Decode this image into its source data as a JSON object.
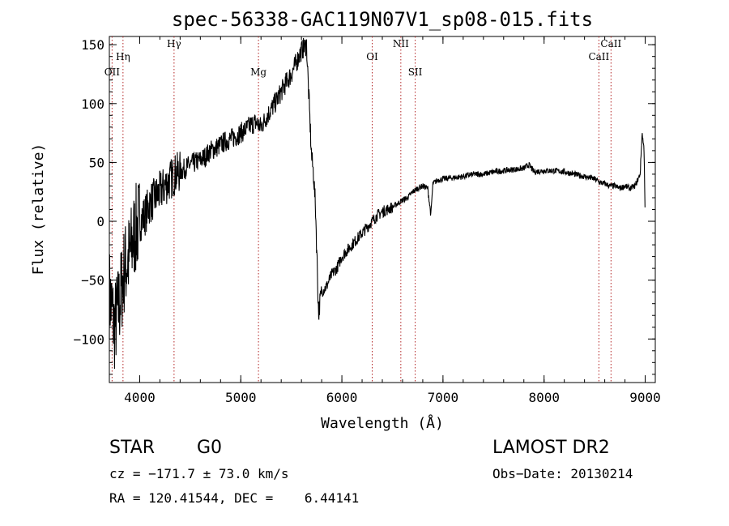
{
  "chart_data": {
    "type": "line",
    "title": "spec-56338-GAC119N07V1_sp08-015.fits",
    "xlabel": "Wavelength (Å)",
    "ylabel": "Flux (relative)",
    "xlim": [
      3700,
      9100
    ],
    "ylim": [
      -137,
      157
    ],
    "xticks": [
      4000,
      5000,
      6000,
      7000,
      8000,
      9000
    ],
    "yticks": [
      -100,
      -50,
      0,
      50,
      100,
      150
    ],
    "grid": false,
    "series_color": "#000000",
    "line_color": "#b22222",
    "spectral_lines": [
      {
        "label": "OII",
        "x": 3727,
        "label_y": 124
      },
      {
        "label": "Hη",
        "x": 3835,
        "label_y": 137
      },
      {
        "label": "Hγ",
        "x": 4340,
        "label_y": 148
      },
      {
        "label": "Mg",
        "x": 5175,
        "label_y": 124
      },
      {
        "label": "OI",
        "x": 6300,
        "label_y": 137
      },
      {
        "label": "NII",
        "x": 6583,
        "label_y": 148
      },
      {
        "label": "SII",
        "x": 6725,
        "label_y": 124
      },
      {
        "label": "CaII",
        "x": 8542,
        "label_y": 137
      },
      {
        "label": "CaII",
        "x": 8662,
        "label_y": 148
      }
    ],
    "x": [
      3700,
      3750,
      3800,
      3850,
      3900,
      3950,
      4000,
      4050,
      4100,
      4150,
      4200,
      4250,
      4300,
      4350,
      4400,
      4450,
      4500,
      4550,
      4600,
      4650,
      4700,
      4750,
      4800,
      4850,
      4900,
      4950,
      5000,
      5050,
      5100,
      5150,
      5200,
      5250,
      5300,
      5350,
      5400,
      5450,
      5500,
      5550,
      5600,
      5650,
      5700,
      5720,
      5740,
      5760,
      5770,
      5780,
      5800,
      5850,
      5900,
      5950,
      6000,
      6050,
      6100,
      6150,
      6200,
      6250,
      6300,
      6350,
      6400,
      6450,
      6500,
      6550,
      6600,
      6650,
      6700,
      6750,
      6800,
      6850,
      6880,
      6900,
      6950,
      7000,
      7100,
      7200,
      7300,
      7400,
      7500,
      7600,
      7700,
      7800,
      7850,
      7900,
      8000,
      8100,
      8200,
      8300,
      8400,
      8500,
      8550,
      8600,
      8650,
      8700,
      8750,
      8800,
      8850,
      8900,
      8950,
      8970,
      8990,
      9000
    ],
    "y": [
      -60,
      -90,
      -70,
      -40,
      -30,
      -10,
      0,
      5,
      15,
      20,
      25,
      30,
      35,
      40,
      42,
      45,
      48,
      50,
      52,
      55,
      60,
      62,
      65,
      68,
      70,
      72,
      75,
      78,
      82,
      84,
      80,
      88,
      95,
      102,
      110,
      118,
      125,
      135,
      145,
      150,
      55,
      40,
      10,
      -50,
      -80,
      -70,
      -60,
      -55,
      -45,
      -40,
      -30,
      -25,
      -20,
      -15,
      -10,
      -5,
      0,
      5,
      8,
      10,
      12,
      15,
      18,
      20,
      25,
      28,
      30,
      28,
      5,
      32,
      35,
      36,
      37,
      38,
      40,
      40,
      42,
      43,
      44,
      45,
      48,
      42,
      43,
      43,
      42,
      40,
      38,
      36,
      33,
      32,
      30,
      30,
      28,
      30,
      28,
      30,
      40,
      75,
      60,
      0
    ]
  },
  "footer": {
    "object_class": "STAR",
    "subclass": "G0",
    "survey": "LAMOST DR2",
    "cz": "cz = −171.7 ± 73.0 km/s",
    "obs_date": "Obs−Date: 20130214",
    "coords": "RA = 120.41544, DEC =    6.44141"
  }
}
